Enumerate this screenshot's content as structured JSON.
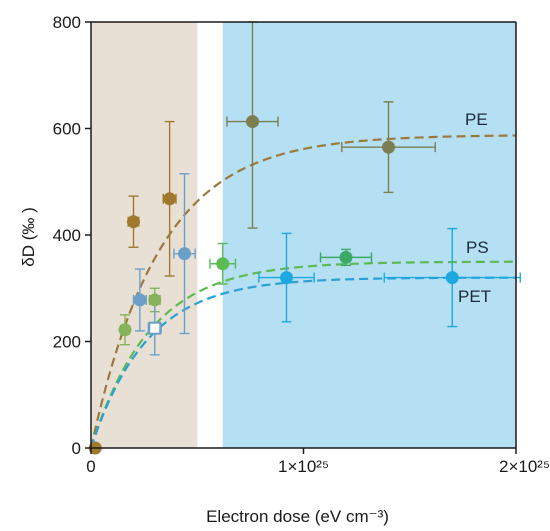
{
  "chart_data": {
    "type": "scatter",
    "xlabel": "Electron dose (eV cm⁻³)",
    "ylabel": "δD (‰ )",
    "xlim": [
      0,
      2e+25
    ],
    "ylim": [
      0,
      800
    ],
    "yticks": [
      0,
      200,
      400,
      600,
      800
    ],
    "ytick_labels": [
      "0",
      "200",
      "400",
      "600",
      "800"
    ],
    "xticks": [
      0,
      1e+25,
      2e+25
    ],
    "xtick_labels": [
      "0",
      "1×10²⁵",
      "2×10²⁵"
    ],
    "grid": false,
    "regions": [
      {
        "x0": 0,
        "x1": 5e+24,
        "color": "#e8e0d4"
      },
      {
        "x0": 6.2e+24,
        "x1": 2e+25,
        "color": "#b5dff2"
      }
    ],
    "series": [
      {
        "name": "PE",
        "color": "#a0782e",
        "points": [
          {
            "x": 2e+23,
            "y": 0,
            "yerr": 0,
            "xerr": 0,
            "color": "#a0782e"
          },
          {
            "x": 2e+24,
            "y": 425,
            "yerr": 48,
            "xerr": 2.5e+23,
            "color": "#a0782e"
          },
          {
            "x": 3.7e+24,
            "y": 468,
            "yerr": 145,
            "xerr": 3e+23,
            "color": "#a0782e"
          },
          {
            "x": 7.6e+24,
            "y": 613,
            "yerr": 200,
            "xerr": 1.2e+24,
            "color": "#7d7d52"
          },
          {
            "x": 1.4e+25,
            "y": 565,
            "yerr": 85,
            "xerr": 2.2e+24,
            "color": "#7d7d52"
          }
        ],
        "fit": {
          "plateau": 588,
          "k": 3.1e-25,
          "color": "#9a7a3c"
        }
      },
      {
        "name": "PS",
        "color": "#5aaa5a",
        "points": [
          {
            "x": 1.6e+24,
            "y": 222,
            "yerr": 28,
            "xerr": 2e+23,
            "color": "#84b35a"
          },
          {
            "x": 3e+24,
            "y": 278,
            "yerr": 22,
            "xerr": 2.5e+23,
            "color": "#84b35a"
          },
          {
            "x": 6.2e+24,
            "y": 346,
            "yerr": 38,
            "xerr": 6e+23,
            "color": "#5cba54"
          },
          {
            "x": 1.2e+25,
            "y": 358,
            "yerr": 15,
            "xerr": 1.2e+24,
            "color": "#3aaa66"
          }
        ],
        "fit": {
          "plateau": 350,
          "k": 3.6e-25,
          "color": "#5cba54"
        }
      },
      {
        "name": "PET",
        "color": "#2aa8dc",
        "points": [
          {
            "x": 2.3e+24,
            "y": 278,
            "yerr": 58,
            "xerr": 3e+23,
            "color": "#6aa0c8"
          },
          {
            "x": 4.4e+24,
            "y": 365,
            "yerr": 150,
            "xerr": 5e+23,
            "color": "#6aa0c8"
          },
          {
            "x": 3e+24,
            "y": 225,
            "yerr": 50,
            "xerr": 3e+23,
            "color": "#6aa0c8",
            "open": true
          },
          {
            "x": 9.2e+24,
            "y": 320,
            "yerr": 83,
            "xerr": 1.3e+24,
            "color": "#1ea8e0"
          },
          {
            "x": 1.7e+25,
            "y": 320,
            "yerr": 92,
            "xerr": 3.2e+24,
            "color": "#1ea8e0"
          }
        ],
        "fit": {
          "plateau": 320,
          "k": 3.8e-25,
          "color": "#2aa0d4"
        }
      }
    ]
  }
}
